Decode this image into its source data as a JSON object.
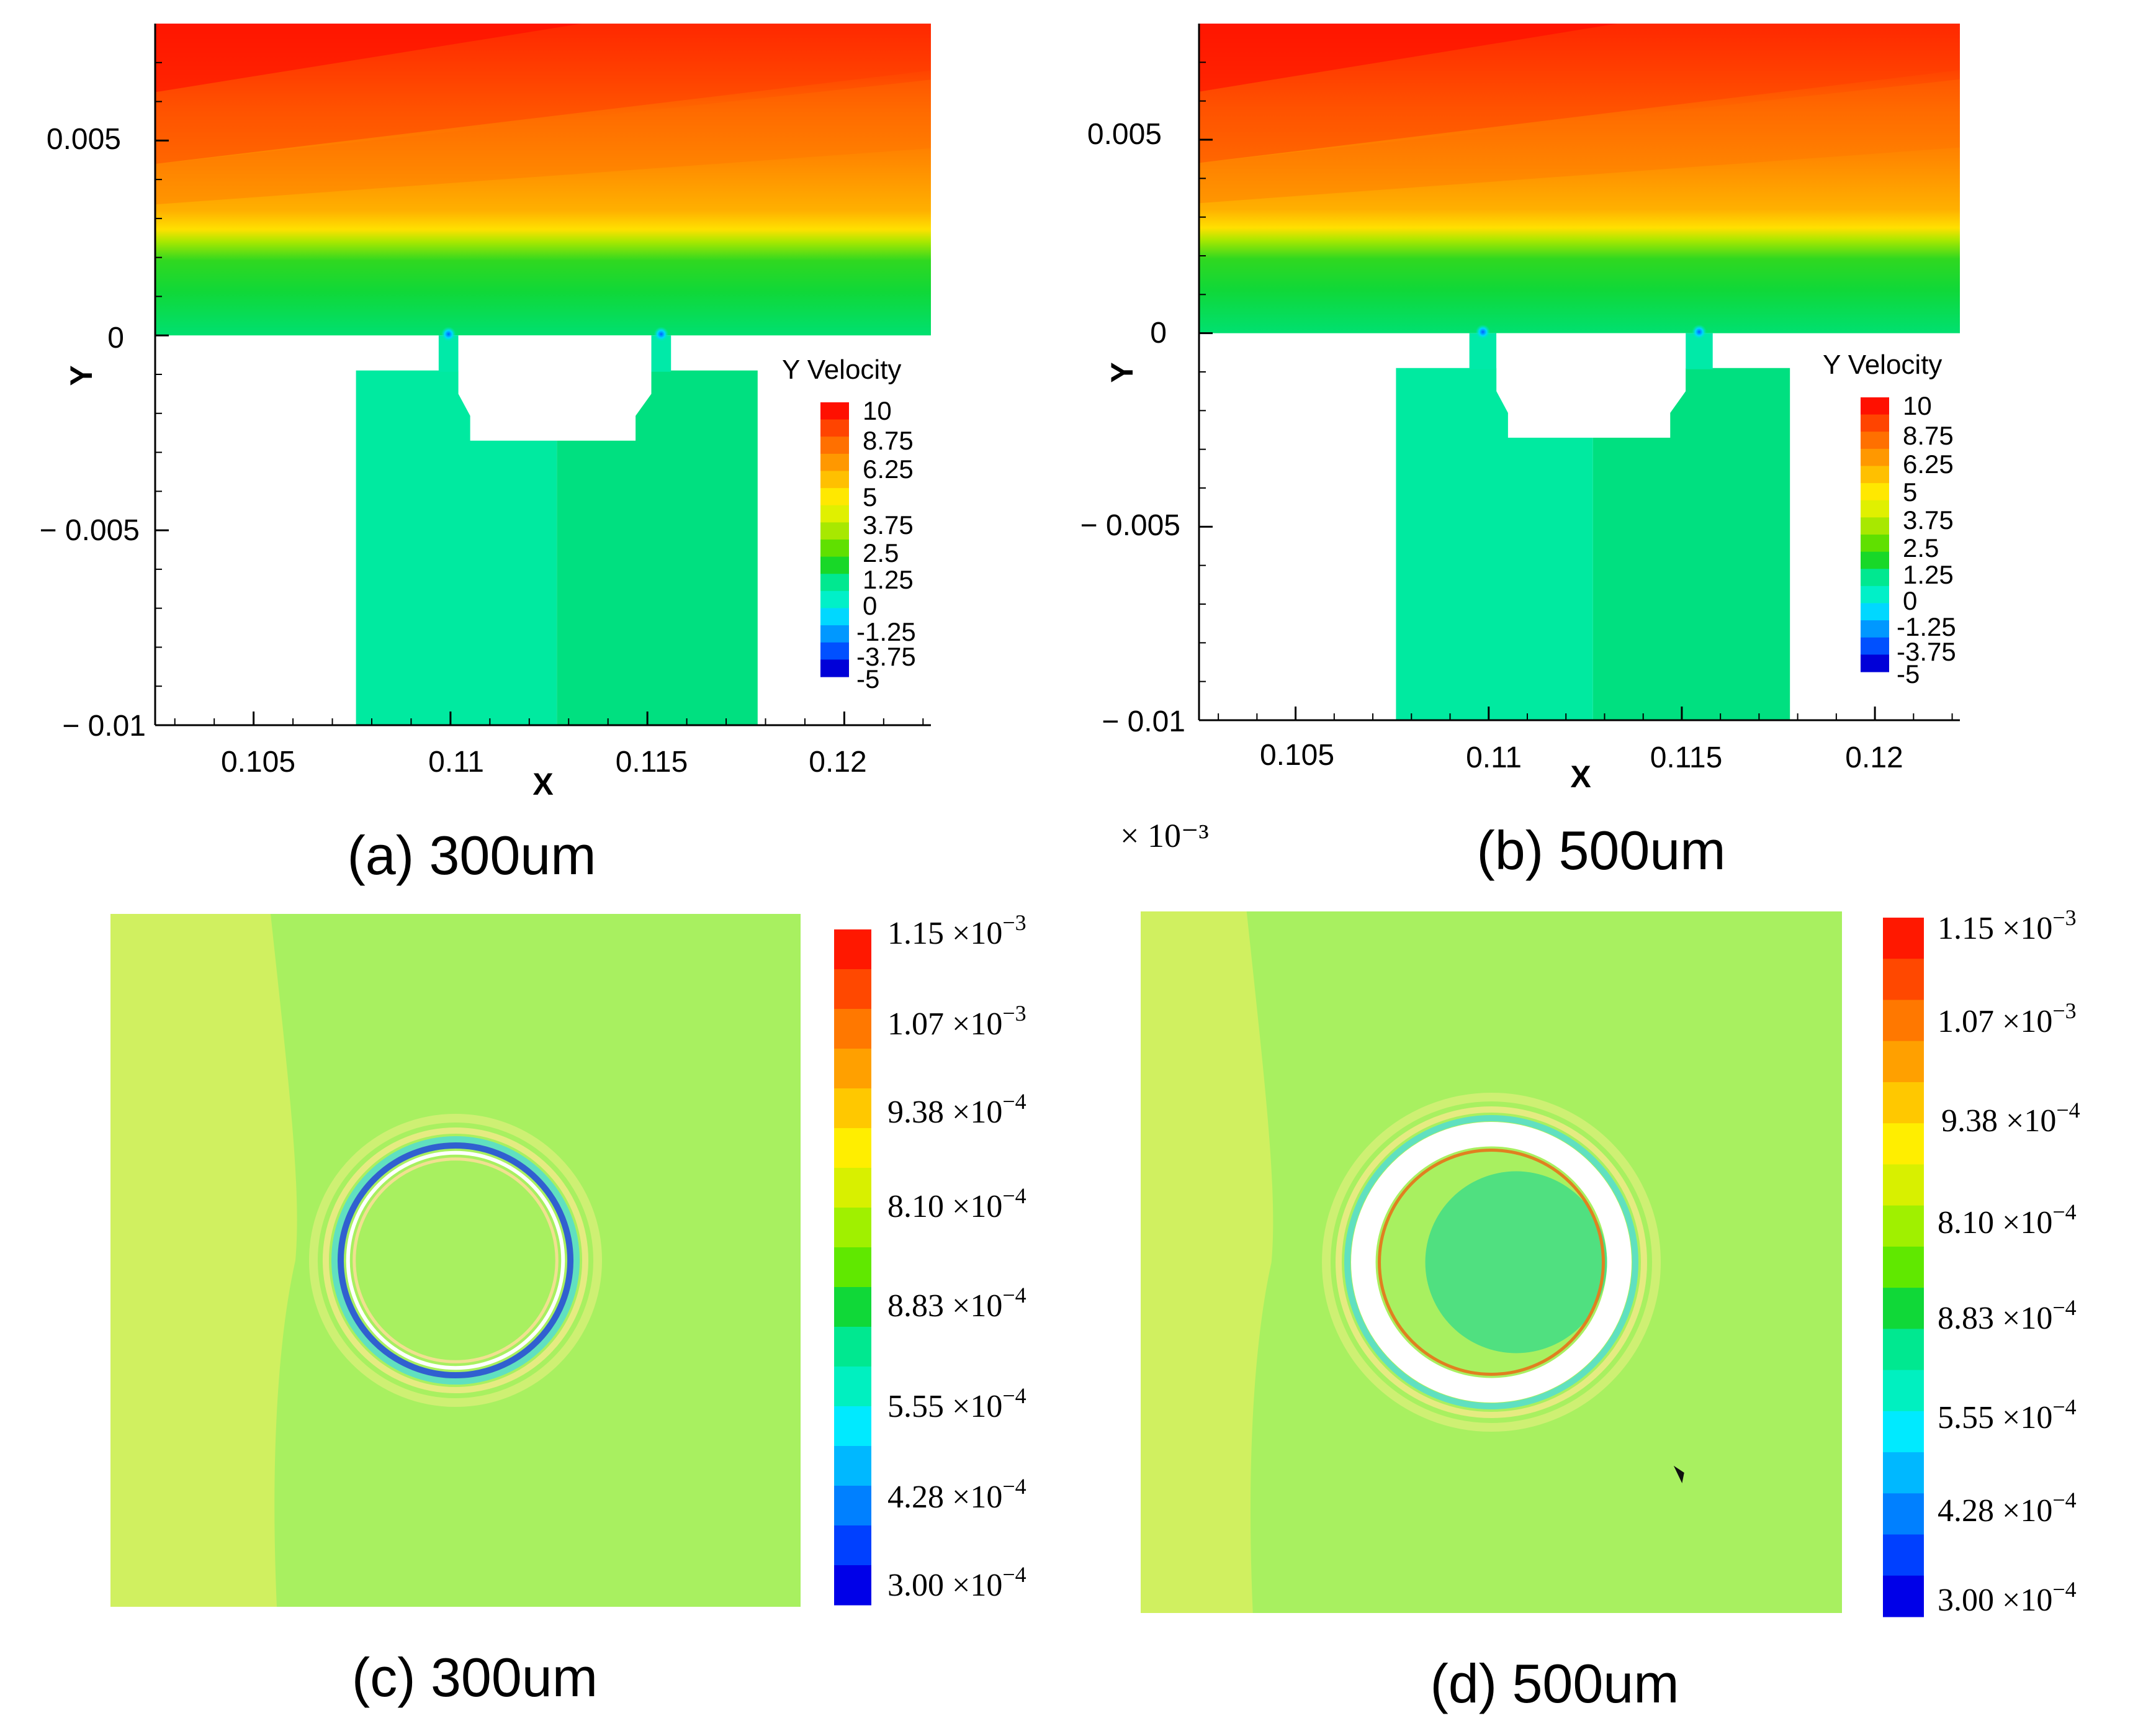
{
  "palette": {
    "velocity": [
      "#0000d8",
      "#0050ff",
      "#0098ff",
      "#00d8ff",
      "#00f0c8",
      "#00e890",
      "#18d828",
      "#60e000",
      "#a8e800",
      "#e0f000",
      "#ffe800",
      "#ffc000",
      "#ff9800",
      "#ff7000",
      "#ff4400",
      "#ff1000"
    ],
    "pressure": [
      "#0000e8",
      "#0040ff",
      "#0080ff",
      "#00b8ff",
      "#00eaff",
      "#00f0c0",
      "#00e890",
      "#10d838",
      "#60e800",
      "#a0f000",
      "#d8f000",
      "#ffee00",
      "#ffc800",
      "#ffa000",
      "#ff7800",
      "#ff4800",
      "#ff1800"
    ]
  },
  "chart_data": [
    {
      "id": "a",
      "type": "heatmap",
      "caption": "(a) 300um",
      "variable": "Y Velocity",
      "xlabel": "X",
      "ylabel": "Y",
      "xlim": [
        0.1025,
        0.1222
      ],
      "ylim": [
        -0.01,
        0.008
      ],
      "x_ticks": [
        "0.105",
        "0.11",
        "0.115",
        "0.12"
      ],
      "x_tick_values": [
        0.105,
        0.11,
        0.115,
        0.12
      ],
      "y_ticks": [
        "0.005",
        "0",
        "− 0.005",
        "− 0.01"
      ],
      "y_tick_values": [
        0.005,
        0,
        -0.005,
        -0.01
      ],
      "legend_title": "Y Velocity",
      "legend_levels": [
        "10",
        "8.75",
        "6.25",
        "5",
        "3.75",
        "2.5",
        "1.25",
        "0",
        "-1.25",
        "-3.75",
        "-5"
      ],
      "range": [
        -5,
        10
      ],
      "channel_x": [
        0.1025,
        0.1222
      ],
      "channel_y": [
        0,
        0.008
      ],
      "slots": [
        [
          0.1097,
          0.1102
        ],
        [
          0.1151,
          0.1156
        ]
      ],
      "cavity_x": [
        0.1076,
        0.1178
      ],
      "cavity_top": -0.0009,
      "insert_top_x": [
        0.1102,
        0.1151
      ],
      "insert_bottom_x": [
        0.1105,
        0.1147
      ],
      "insert_neck_y": -0.0015,
      "insert_bottom_y": -0.0027,
      "insert_split_x": 0.1127
    },
    {
      "id": "b",
      "type": "heatmap",
      "caption": "(b) 500um",
      "variable": "Y Velocity",
      "xlabel": "X",
      "ylabel": "Y",
      "xlim": [
        0.1025,
        0.1222
      ],
      "ylim": [
        -0.01,
        0.008
      ],
      "x_ticks": [
        "0.105",
        "0.11",
        "0.115",
        "0.12"
      ],
      "x_tick_values": [
        0.105,
        0.11,
        0.115,
        0.12
      ],
      "y_ticks": [
        "0.005",
        "0",
        "− 0.005",
        "− 0.01"
      ],
      "y_tick_values": [
        0.005,
        0,
        -0.005,
        -0.01
      ],
      "legend_title": "Y Velocity",
      "legend_levels": [
        "10",
        "8.75",
        "6.25",
        "5",
        "3.75",
        "2.5",
        "1.25",
        "0",
        "-1.25",
        "-3.75",
        "-5"
      ],
      "range": [
        -5,
        10
      ],
      "channel_x": [
        0.1025,
        0.1222
      ],
      "channel_y": [
        0,
        0.008
      ],
      "slots": [
        [
          0.1095,
          0.1102
        ],
        [
          0.1151,
          0.1158
        ]
      ],
      "cavity_x": [
        0.1076,
        0.1178
      ],
      "cavity_top": -0.0009,
      "insert_top_x": [
        0.1102,
        0.1151
      ],
      "insert_bottom_x": [
        0.1105,
        0.1147
      ],
      "insert_neck_y": -0.0015,
      "insert_bottom_y": -0.0027,
      "insert_split_x": 0.1127
    },
    {
      "id": "c",
      "type": "heatmap",
      "caption": "(c) 300um",
      "multiplier": "× 10⁻³",
      "legend_levels": [
        {
          "mantissa": "1.15",
          "exponent": "−3"
        },
        {
          "mantissa": "1.07",
          "exponent": "−3"
        },
        {
          "mantissa": "9.38",
          "exponent": "−4"
        },
        {
          "mantissa": "8.10",
          "exponent": "−4"
        },
        {
          "mantissa": "8.83",
          "exponent": "−4"
        },
        {
          "mantissa": "5.55",
          "exponent": "−4"
        },
        {
          "mantissa": "4.28",
          "exponent": "−4"
        },
        {
          "mantissa": "3.00",
          "exponent": "−4"
        }
      ],
      "ring_outer_ratio": 0.17,
      "ring_inner_ratio": 0.163
    },
    {
      "id": "d",
      "type": "heatmap",
      "caption": "(d) 500um",
      "legend_levels": [
        {
          "mantissa": "1.15",
          "exponent": "−3"
        },
        {
          "mantissa": "1.07",
          "exponent": "−3"
        },
        {
          "mantissa": "9.38",
          "exponent": "−4"
        },
        {
          "mantissa": "8.10",
          "exponent": "−4"
        },
        {
          "mantissa": "8.83",
          "exponent": "−4"
        },
        {
          "mantissa": "5.55",
          "exponent": "−4"
        },
        {
          "mantissa": "4.28",
          "exponent": "−4"
        },
        {
          "mantissa": "3.00",
          "exponent": "−4"
        }
      ],
      "ring_outer_ratio": 0.2,
      "ring_inner_ratio": 0.165
    }
  ]
}
